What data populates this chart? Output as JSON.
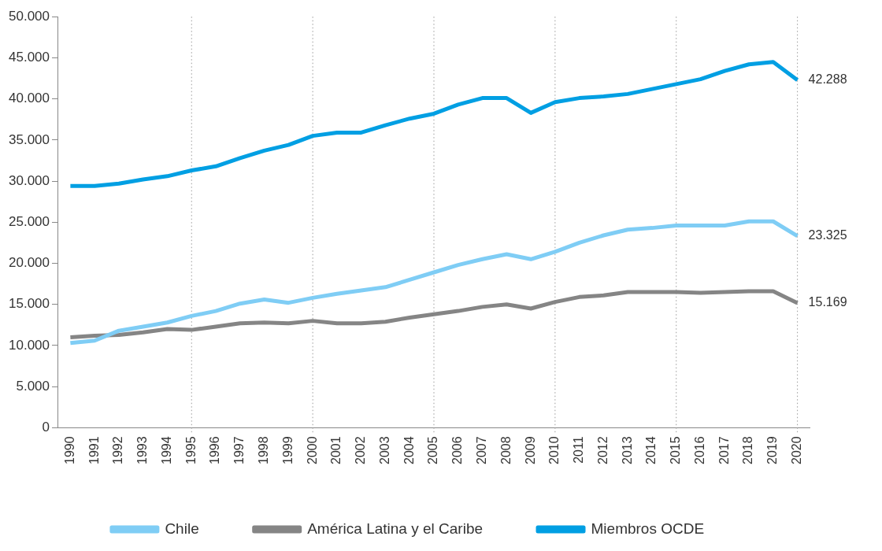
{
  "chart_data": {
    "type": "line",
    "categories": [
      "1990",
      "1991",
      "1992",
      "1993",
      "1994",
      "1995",
      "1996",
      "1997",
      "1998",
      "1999",
      "2000",
      "2001",
      "2002",
      "2003",
      "2004",
      "2005",
      "2006",
      "2007",
      "2008",
      "2009",
      "2010",
      "2011",
      "2012",
      "2013",
      "2014",
      "2015",
      "2016",
      "2017",
      "2018",
      "2019",
      "2020"
    ],
    "series": [
      {
        "name": "Chile",
        "color": "#7fcdf5",
        "values": [
          10300,
          10600,
          11800,
          12300,
          12800,
          13600,
          14200,
          15100,
          15600,
          15200,
          15800,
          16300,
          16700,
          17100,
          18000,
          18900,
          19800,
          20500,
          21100,
          20500,
          21400,
          22500,
          23400,
          24100,
          24300,
          24600,
          24600,
          24600,
          25100,
          25100,
          23325
        ],
        "value_labels": [
          null,
          null,
          null,
          null,
          null,
          null,
          null,
          null,
          null,
          null,
          null,
          null,
          null,
          null,
          null,
          null,
          null,
          null,
          null,
          null,
          null,
          null,
          null,
          null,
          null,
          null,
          null,
          null,
          null,
          null,
          "23.325"
        ]
      },
      {
        "name": "América Latina y el Caribe",
        "color": "#858585",
        "values": [
          11000,
          11200,
          11300,
          11600,
          12000,
          11900,
          12300,
          12700,
          12800,
          12700,
          13000,
          12700,
          12700,
          12900,
          13400,
          13800,
          14200,
          14700,
          15000,
          14500,
          15300,
          15900,
          16100,
          16500,
          16500,
          16500,
          16400,
          16500,
          16600,
          16600,
          15169
        ],
        "value_labels": [
          null,
          null,
          null,
          null,
          null,
          null,
          null,
          null,
          null,
          null,
          null,
          null,
          null,
          null,
          null,
          null,
          null,
          null,
          null,
          null,
          null,
          null,
          null,
          null,
          null,
          null,
          null,
          null,
          null,
          null,
          "15.169"
        ]
      },
      {
        "name": "Miembros OCDE",
        "color": "#009fe3",
        "values": [
          29400,
          29400,
          29700,
          30200,
          30600,
          31300,
          31800,
          32800,
          33700,
          34400,
          35500,
          35900,
          35900,
          36800,
          37600,
          38200,
          39300,
          40100,
          40100,
          38300,
          39600,
          40100,
          40300,
          40600,
          41200,
          41800,
          42400,
          43400,
          44200,
          44500,
          42288
        ],
        "value_labels": [
          null,
          null,
          null,
          null,
          null,
          null,
          null,
          null,
          null,
          null,
          null,
          null,
          null,
          null,
          null,
          null,
          null,
          null,
          null,
          null,
          null,
          null,
          null,
          null,
          null,
          null,
          null,
          null,
          null,
          null,
          "42.288"
        ]
      }
    ],
    "ylim": [
      0,
      50000
    ],
    "yticks": [
      {
        "value": 0,
        "label": "0"
      },
      {
        "value": 5000,
        "label": "5.000"
      },
      {
        "value": 10000,
        "label": "10.000"
      },
      {
        "value": 15000,
        "label": "15.000"
      },
      {
        "value": 20000,
        "label": "20.000"
      },
      {
        "value": 25000,
        "label": "25.000"
      },
      {
        "value": 30000,
        "label": "30.000"
      },
      {
        "value": 35000,
        "label": "35.000"
      },
      {
        "value": 40000,
        "label": "40.000"
      },
      {
        "value": 45000,
        "label": "45.000"
      },
      {
        "value": 50000,
        "label": "50.000"
      }
    ],
    "ref_lines": [
      {
        "axis": "x",
        "value": "1995",
        "color": "#9a9a9a",
        "line_style": "dotted"
      },
      {
        "axis": "x",
        "value": "2000",
        "color": "#9a9a9a",
        "line_style": "dotted"
      },
      {
        "axis": "x",
        "value": "2005",
        "color": "#9a9a9a",
        "line_style": "dotted"
      },
      {
        "axis": "x",
        "value": "2010",
        "color": "#9a9a9a",
        "line_style": "dotted"
      },
      {
        "axis": "x",
        "value": "2015",
        "color": "#9a9a9a",
        "line_style": "dotted"
      },
      {
        "axis": "x",
        "value": "2020",
        "color": "#9a9a9a",
        "line_style": "dotted"
      }
    ],
    "grid": false,
    "legend": "bottom",
    "marker": "none",
    "line_style": "solid"
  }
}
